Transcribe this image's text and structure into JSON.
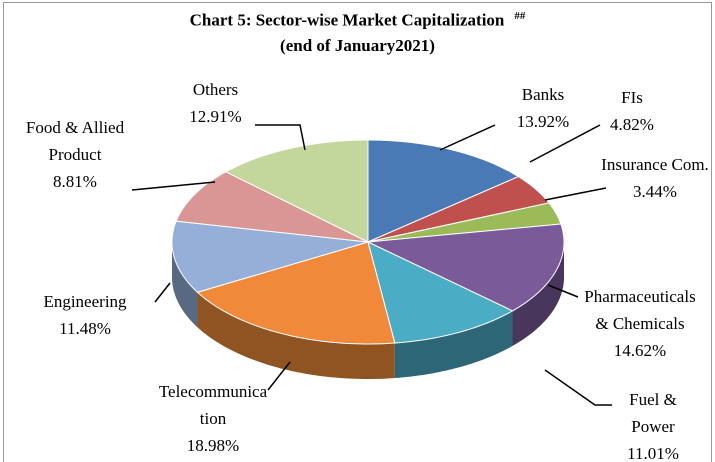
{
  "chart_data": {
    "type": "pie",
    "title": "Chart 5: Sector-wise Market Capitalization",
    "title_note": "##",
    "subtitle": "(end of January2021)",
    "categories": [
      "Banks",
      "FIs",
      "Insurance Com.",
      "Pharmaceuticals & Chemicals",
      "Fuel & Power",
      "Telecommunication",
      "Engineering",
      "Food & Allied Product",
      "Others"
    ],
    "values": [
      13.92,
      4.82,
      3.44,
      14.62,
      11.01,
      18.98,
      11.48,
      8.81,
      12.91
    ],
    "value_labels": [
      "13.92%",
      "4.82%",
      "3.44%",
      "14.62%",
      "11.01%",
      "18.98%",
      "11.48%",
      "8.81%",
      "12.91%"
    ],
    "colors": [
      "#4a7ab5",
      "#c0504d",
      "#9bbb59",
      "#7b5a9a",
      "#4bacc6",
      "#f08a3a",
      "#95afd8",
      "#d99694",
      "#c3d69b"
    ]
  }
}
